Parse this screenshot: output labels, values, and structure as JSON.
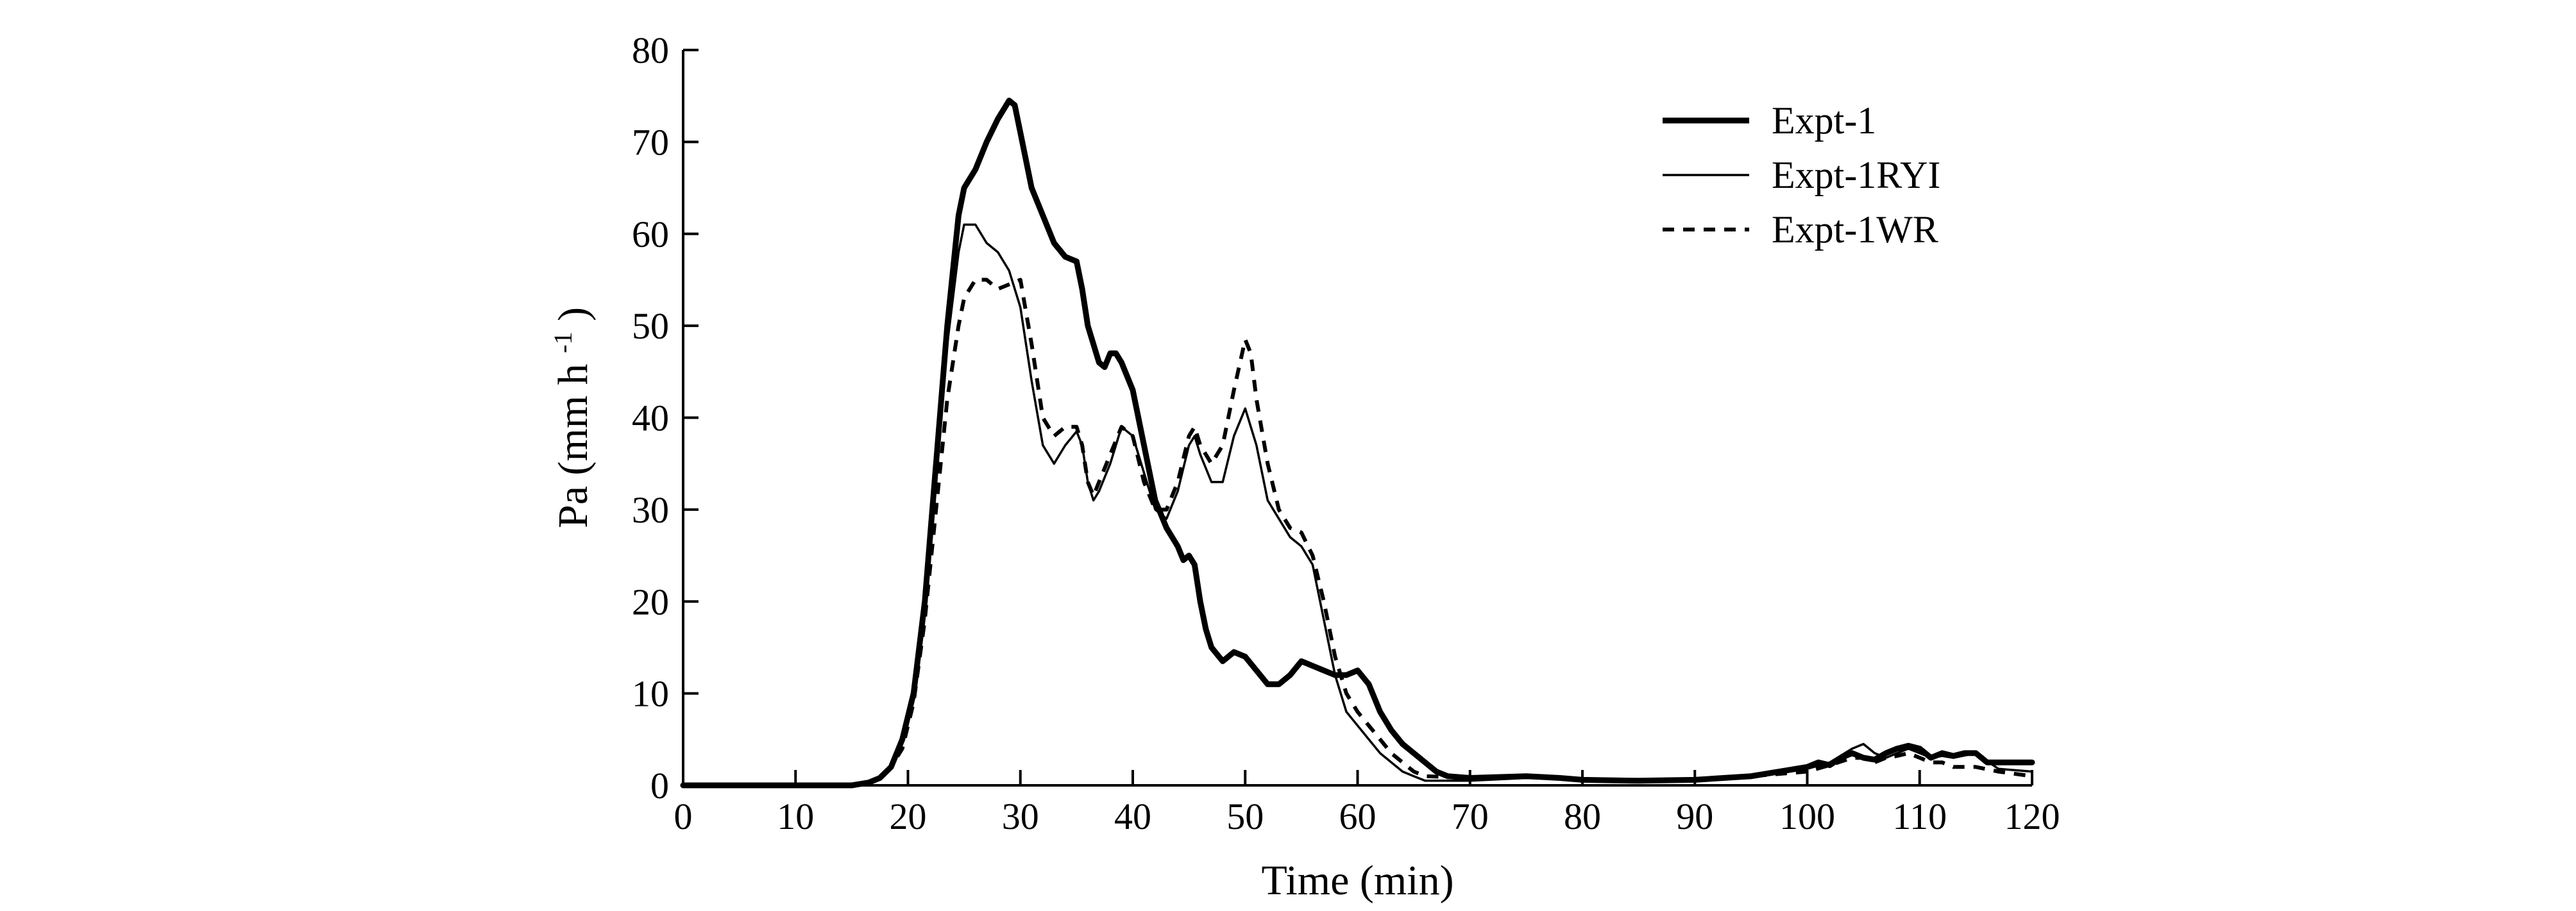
{
  "chart_data": {
    "type": "line",
    "xlabel": "Time (min)",
    "ylabel": "Pa (mm h",
    "ylabel_exp": "-1",
    "ylabel_close": ")",
    "xlim": [
      0,
      120
    ],
    "ylim": [
      0,
      80
    ],
    "x_ticks": [
      0,
      10,
      20,
      30,
      40,
      50,
      60,
      70,
      80,
      90,
      100,
      110,
      120
    ],
    "y_ticks": [
      0,
      10,
      20,
      30,
      40,
      50,
      60,
      70,
      80
    ],
    "grid": false,
    "legend_position": "top-right",
    "series": [
      {
        "name": "Expt-1",
        "style": "thick-solid",
        "color": "#000000",
        "points": [
          [
            0,
            0
          ],
          [
            10,
            0
          ],
          [
            15,
            0
          ],
          [
            16.5,
            0.3
          ],
          [
            17.5,
            0.8
          ],
          [
            18.5,
            2
          ],
          [
            19.5,
            5
          ],
          [
            20.5,
            10
          ],
          [
            21.5,
            20
          ],
          [
            22.5,
            35
          ],
          [
            23.5,
            50
          ],
          [
            24.5,
            62
          ],
          [
            25,
            65
          ],
          [
            26,
            67
          ],
          [
            27,
            70
          ],
          [
            28,
            72.5
          ],
          [
            29,
            74.5
          ],
          [
            29.5,
            74
          ],
          [
            30,
            71
          ],
          [
            31,
            65
          ],
          [
            32,
            62
          ],
          [
            33,
            59
          ],
          [
            34,
            57.5
          ],
          [
            35,
            57
          ],
          [
            35.5,
            54
          ],
          [
            36,
            50
          ],
          [
            37,
            46
          ],
          [
            37.5,
            45.5
          ],
          [
            38,
            47
          ],
          [
            38.5,
            47
          ],
          [
            39,
            46
          ],
          [
            40,
            43
          ],
          [
            41,
            37
          ],
          [
            42,
            31
          ],
          [
            43,
            28
          ],
          [
            44,
            26
          ],
          [
            44.5,
            24.5
          ],
          [
            45,
            25
          ],
          [
            45.5,
            24
          ],
          [
            46,
            20
          ],
          [
            46.5,
            17
          ],
          [
            47,
            15
          ],
          [
            48,
            13.5
          ],
          [
            49,
            14.5
          ],
          [
            50,
            14
          ],
          [
            51,
            12.5
          ],
          [
            52,
            11
          ],
          [
            53,
            11
          ],
          [
            54,
            12
          ],
          [
            55,
            13.5
          ],
          [
            56,
            13
          ],
          [
            57,
            12.5
          ],
          [
            58,
            12
          ],
          [
            59,
            12
          ],
          [
            60,
            12.5
          ],
          [
            61,
            11
          ],
          [
            62,
            8
          ],
          [
            63,
            6
          ],
          [
            64,
            4.5
          ],
          [
            65,
            3.5
          ],
          [
            66,
            2.5
          ],
          [
            67,
            1.5
          ],
          [
            68,
            1
          ],
          [
            70,
            0.8
          ],
          [
            75,
            1
          ],
          [
            78,
            0.8
          ],
          [
            80,
            0.6
          ],
          [
            85,
            0.5
          ],
          [
            90,
            0.6
          ],
          [
            95,
            1
          ],
          [
            100,
            2
          ],
          [
            101,
            2.5
          ],
          [
            102,
            2.2
          ],
          [
            103,
            3
          ],
          [
            104,
            3.5
          ],
          [
            105,
            3
          ],
          [
            106,
            2.8
          ],
          [
            107,
            3.5
          ],
          [
            108,
            4
          ],
          [
            109,
            4.3
          ],
          [
            110,
            4
          ],
          [
            111,
            3
          ],
          [
            112,
            3.5
          ],
          [
            113,
            3.2
          ],
          [
            114,
            3.5
          ],
          [
            115,
            3.5
          ],
          [
            116,
            2.5
          ],
          [
            120,
            2.5
          ]
        ]
      },
      {
        "name": "Expt-1RYI",
        "style": "thin-solid",
        "color": "#000000",
        "points": [
          [
            0,
            0
          ],
          [
            10,
            0
          ],
          [
            15,
            0
          ],
          [
            16.5,
            0.3
          ],
          [
            17.5,
            0.8
          ],
          [
            18.5,
            2
          ],
          [
            19.5,
            5
          ],
          [
            20.5,
            10
          ],
          [
            21.5,
            20
          ],
          [
            22.5,
            35
          ],
          [
            23.5,
            48
          ],
          [
            24.5,
            58
          ],
          [
            25,
            61
          ],
          [
            26,
            61
          ],
          [
            27,
            59
          ],
          [
            28,
            58
          ],
          [
            29,
            56
          ],
          [
            30,
            52
          ],
          [
            31,
            44
          ],
          [
            32,
            37
          ],
          [
            33,
            35
          ],
          [
            34,
            37
          ],
          [
            35,
            38.5
          ],
          [
            35.5,
            37
          ],
          [
            36,
            33
          ],
          [
            36.5,
            31
          ],
          [
            37,
            32
          ],
          [
            38,
            35
          ],
          [
            39,
            39
          ],
          [
            40,
            38
          ],
          [
            41,
            34
          ],
          [
            42,
            30
          ],
          [
            43,
            29
          ],
          [
            44,
            32
          ],
          [
            45,
            37
          ],
          [
            45.5,
            38
          ],
          [
            46,
            36
          ],
          [
            47,
            33
          ],
          [
            48,
            33
          ],
          [
            49,
            38
          ],
          [
            50,
            41
          ],
          [
            51,
            37
          ],
          [
            52,
            31
          ],
          [
            53,
            29
          ],
          [
            54,
            27
          ],
          [
            55,
            26
          ],
          [
            56,
            24
          ],
          [
            57,
            18
          ],
          [
            58,
            12
          ],
          [
            59,
            8
          ],
          [
            60,
            6.5
          ],
          [
            61,
            5
          ],
          [
            62,
            3.5
          ],
          [
            63,
            2.5
          ],
          [
            64,
            1.5
          ],
          [
            65,
            1
          ],
          [
            66,
            0.5
          ],
          [
            70,
            0.5
          ],
          [
            75,
            0.8
          ],
          [
            80,
            0.6
          ],
          [
            85,
            0.5
          ],
          [
            90,
            0.5
          ],
          [
            95,
            0.8
          ],
          [
            100,
            1.8
          ],
          [
            102,
            2.5
          ],
          [
            104,
            4
          ],
          [
            105,
            4.5
          ],
          [
            106,
            3.5
          ],
          [
            107,
            3
          ],
          [
            108,
            3.5
          ],
          [
            109,
            4
          ],
          [
            110,
            3.5
          ],
          [
            111,
            3
          ],
          [
            112,
            3.2
          ],
          [
            113,
            3
          ],
          [
            115,
            3.5
          ],
          [
            117,
            1.8
          ],
          [
            120,
            1.5
          ]
        ]
      },
      {
        "name": "Expt-1WR",
        "style": "dashed",
        "color": "#000000",
        "points": [
          [
            0,
            0
          ],
          [
            10,
            0
          ],
          [
            15,
            0
          ],
          [
            16.5,
            0.3
          ],
          [
            17.5,
            0.8
          ],
          [
            18.5,
            2
          ],
          [
            19.5,
            4
          ],
          [
            20.5,
            9
          ],
          [
            21.5,
            18
          ],
          [
            22.5,
            30
          ],
          [
            23.5,
            42
          ],
          [
            24.5,
            50
          ],
          [
            25,
            53
          ],
          [
            26,
            55
          ],
          [
            27,
            55
          ],
          [
            28,
            54
          ],
          [
            29,
            54.5
          ],
          [
            30,
            55
          ],
          [
            31,
            48
          ],
          [
            32,
            40
          ],
          [
            33,
            38
          ],
          [
            34,
            39
          ],
          [
            35,
            39
          ],
          [
            35.5,
            37
          ],
          [
            36,
            33
          ],
          [
            36.5,
            31.5
          ],
          [
            37,
            33
          ],
          [
            38,
            36
          ],
          [
            39,
            39
          ],
          [
            40,
            38
          ],
          [
            41,
            33
          ],
          [
            42,
            30
          ],
          [
            43,
            30
          ],
          [
            44,
            33
          ],
          [
            45,
            38
          ],
          [
            45.5,
            39
          ],
          [
            46,
            37
          ],
          [
            47,
            35
          ],
          [
            48,
            37
          ],
          [
            49,
            43
          ],
          [
            50,
            48.5
          ],
          [
            50.5,
            47
          ],
          [
            51,
            42
          ],
          [
            52,
            35
          ],
          [
            53,
            30
          ],
          [
            54,
            28
          ],
          [
            55,
            27.5
          ],
          [
            56,
            25
          ],
          [
            57,
            20
          ],
          [
            58,
            14
          ],
          [
            59,
            10
          ],
          [
            60,
            8
          ],
          [
            61,
            6.5
          ],
          [
            62,
            5
          ],
          [
            63,
            3.5
          ],
          [
            64,
            2.5
          ],
          [
            65,
            1.5
          ],
          [
            66,
            1
          ],
          [
            70,
            0.8
          ],
          [
            75,
            1
          ],
          [
            80,
            0.6
          ],
          [
            85,
            0.5
          ],
          [
            90,
            0.6
          ],
          [
            95,
            1
          ],
          [
            100,
            1.5
          ],
          [
            102,
            2.2
          ],
          [
            104,
            3
          ],
          [
            105,
            3
          ],
          [
            106,
            2.5
          ],
          [
            107,
            3
          ],
          [
            108,
            3.2
          ],
          [
            109,
            3.5
          ],
          [
            110,
            3
          ],
          [
            111,
            2.5
          ],
          [
            112,
            2.5
          ],
          [
            113,
            2
          ],
          [
            115,
            2
          ],
          [
            117,
            1.5
          ],
          [
            120,
            1
          ]
        ]
      }
    ]
  }
}
